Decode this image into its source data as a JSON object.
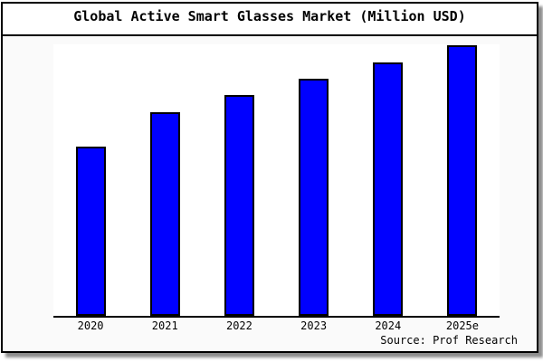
{
  "title_bar": {
    "title": "Global Active Smart Glasses Market (Million USD)"
  },
  "footer": {
    "source_note": "Source: Prof Research"
  },
  "colors": {
    "bar_fill": "#0000ff",
    "bar_border": "#000000",
    "chart_background": "#fafafa",
    "plot_background": "#ffffff",
    "frame_border": "#000000",
    "text": "#000000"
  },
  "chart_data": {
    "type": "bar",
    "title": "Global Active Smart Glasses Market (Million USD)",
    "categories": [
      "2020",
      "2021",
      "2022",
      "2023",
      "2024",
      "2025e"
    ],
    "values": [
      187,
      225,
      244,
      262,
      280,
      299
    ],
    "value_basis": "No y-axis scale visible; values are relative bar heights (pixels, plot height 300)",
    "unit": "Million USD",
    "xlabel": "",
    "ylabel": "",
    "ylim": [
      0,
      300
    ],
    "grid": false,
    "legend": "none",
    "source": "Source: Prof Research"
  }
}
